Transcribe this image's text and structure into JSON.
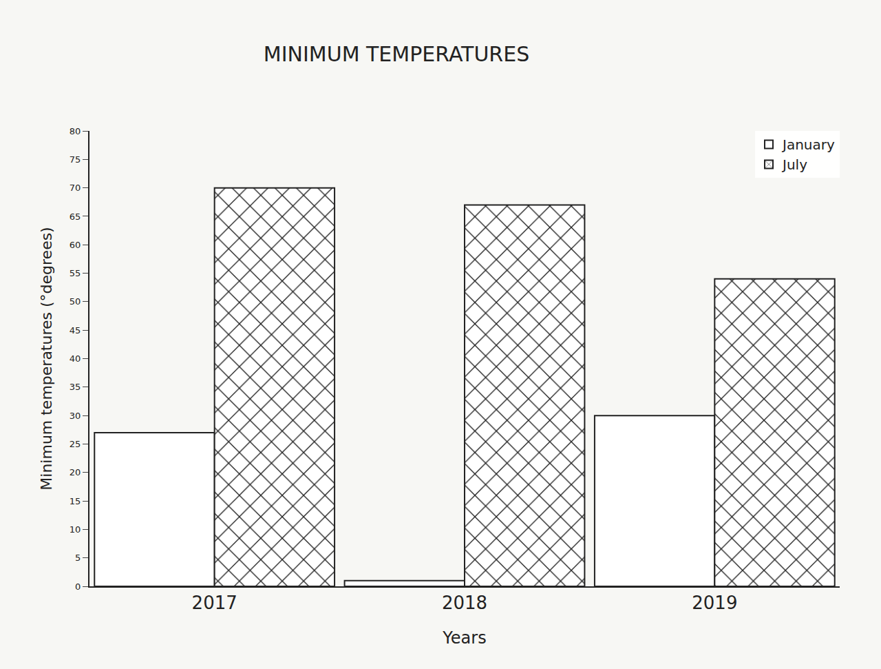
{
  "chart_data": {
    "type": "bar",
    "title": "MINIMUM TEMPERATURES",
    "x_label": "Years",
    "y_label": "Minimum temperatures (°degrees)",
    "categories": [
      "2017",
      "2018",
      "2019"
    ],
    "series": [
      {
        "name": "January",
        "color": "#ffffff",
        "values": [
          27,
          1,
          30
        ]
      },
      {
        "name": "July",
        "color": "#ffffff",
        "marker": "crosshatch",
        "values": [
          70,
          67,
          54
        ]
      }
    ],
    "ylim": [
      0,
      80
    ],
    "yticks": [
      0,
      5,
      10,
      15,
      20,
      25,
      30,
      35,
      40,
      45,
      50,
      55,
      60,
      65,
      70,
      75,
      80
    ],
    "grid": false,
    "legend": "top right"
  }
}
